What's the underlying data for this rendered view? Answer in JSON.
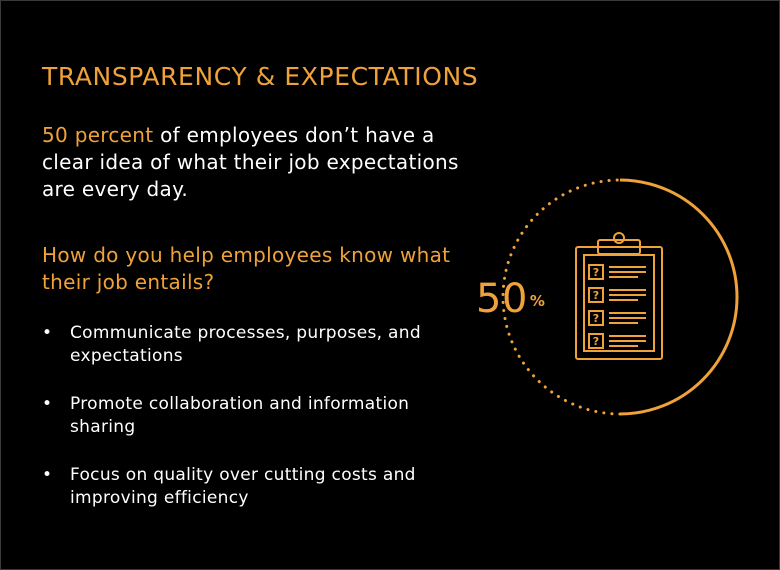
{
  "title": "TRANSPARENCY & EXPECTATIONS",
  "lead": {
    "highlight": "50 percent",
    "rest": " of employees don’t have a clear idea of what their job expectations are every day."
  },
  "question": "How do you help employees know what their job entails?",
  "bullets": [
    "Communicate processes, purposes, and expectations",
    "Promote collaboration and information sharing",
    "Focus on quality over cutting costs and improving efficiency"
  ],
  "stat": {
    "value": "50",
    "unit": "%",
    "fraction": 0.5
  },
  "icon": "clipboard-checklist-icon",
  "checkbox_mark": "?",
  "colors": {
    "accent": "#f0a23a",
    "background": "#000000",
    "text": "#ffffff"
  }
}
